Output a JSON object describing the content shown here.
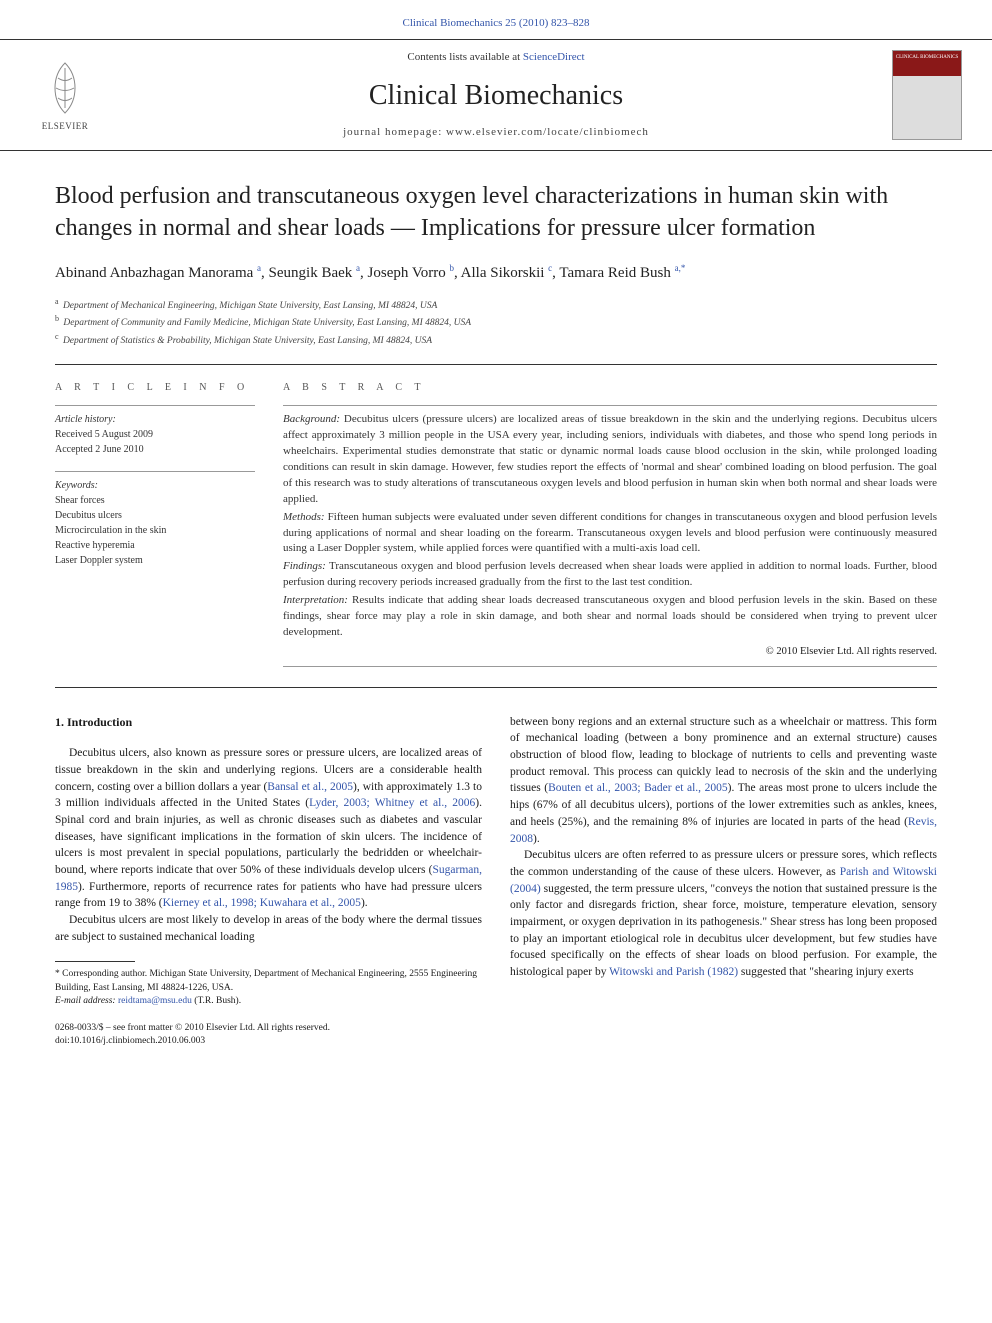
{
  "top_link": "Clinical Biomechanics 25 (2010) 823–828",
  "header": {
    "contents_prefix": "Contents lists available at ",
    "contents_link": "ScienceDirect",
    "journal": "Clinical Biomechanics",
    "homepage_prefix": "journal homepage: ",
    "homepage": "www.elsevier.com/locate/clinbiomech",
    "publisher_logo_text": "ELSEVIER",
    "cover_text": "CLINICAL BIOMECHANICS"
  },
  "title": "Blood perfusion and transcutaneous oxygen level characterizations in human skin with changes in normal and shear loads — Implications for pressure ulcer formation",
  "authors_html": "Abinand Anbazhagan Manorama <sup>a</sup>, Seungik Baek <sup>a</sup>, Joseph Vorro <sup>b</sup>, Alla Sikorskii <sup>c</sup>, Tamara Reid Bush <sup>a,*</sup>",
  "affiliations": [
    {
      "sup": "a",
      "text": "Department of Mechanical Engineering, Michigan State University, East Lansing, MI 48824, USA"
    },
    {
      "sup": "b",
      "text": "Department of Community and Family Medicine, Michigan State University, East Lansing, MI 48824, USA"
    },
    {
      "sup": "c",
      "text": "Department of Statistics & Probability, Michigan State University, East Lansing, MI 48824, USA"
    }
  ],
  "info": {
    "heading": "A R T I C L E   I N F O",
    "history_label": "Article history:",
    "received": "Received 5 August 2009",
    "accepted": "Accepted 2 June 2010",
    "keywords_label": "Keywords:",
    "keywords": [
      "Shear forces",
      "Decubitus ulcers",
      "Microcirculation in the skin",
      "Reactive hyperemia",
      "Laser Doppler system"
    ]
  },
  "abstract": {
    "heading": "A B S T R A C T",
    "paragraphs": [
      {
        "label": "Background:",
        "text": " Decubitus ulcers (pressure ulcers) are localized areas of tissue breakdown in the skin and the underlying regions. Decubitus ulcers affect approximately 3 million people in the USA every year, including seniors, individuals with diabetes, and those who spend long periods in wheelchairs. Experimental studies demonstrate that static or dynamic normal loads cause blood occlusion in the skin, while prolonged loading conditions can result in skin damage. However, few studies report the effects of 'normal and shear' combined loading on blood perfusion. The goal of this research was to study alterations of transcutaneous oxygen levels and blood perfusion in human skin when both normal and shear loads were applied."
      },
      {
        "label": "Methods:",
        "text": " Fifteen human subjects were evaluated under seven different conditions for changes in transcutaneous oxygen and blood perfusion levels during applications of normal and shear loading on the forearm. Transcutaneous oxygen levels and blood perfusion were continuously measured using a Laser Doppler system, while applied forces were quantified with a multi-axis load cell."
      },
      {
        "label": "Findings:",
        "text": " Transcutaneous oxygen and blood perfusion levels decreased when shear loads were applied in addition to normal loads. Further, blood perfusion during recovery periods increased gradually from the first to the last test condition."
      },
      {
        "label": "Interpretation:",
        "text": " Results indicate that adding shear loads decreased transcutaneous oxygen and blood perfusion levels in the skin. Based on these findings, shear force may play a role in skin damage, and both shear and normal loads should be considered when trying to prevent ulcer development."
      }
    ],
    "copyright": "© 2010 Elsevier Ltd. All rights reserved."
  },
  "body": {
    "intro_heading": "1. Introduction",
    "left_paras": [
      "Decubitus ulcers, also known as pressure sores or pressure ulcers, are localized areas of tissue breakdown in the skin and underlying regions. Ulcers are a considerable health concern, costing over a billion dollars a year (Bansal et al., 2005), with approximately 1.3 to 3 million individuals affected in the United States (Lyder, 2003; Whitney et al., 2006). Spinal cord and brain injuries, as well as chronic diseases such as diabetes and vascular diseases, have significant implications in the formation of skin ulcers. The incidence of ulcers is most prevalent in special populations, particularly the bedridden or wheelchair-bound, where reports indicate that over 50% of these individuals develop ulcers (Sugarman, 1985). Furthermore, reports of recurrence rates for patients who have had pressure ulcers range from 19 to 38% (Kierney et al., 1998; Kuwahara et al., 2005).",
      "Decubitus ulcers are most likely to develop in areas of the body where the dermal tissues are subject to sustained mechanical loading"
    ],
    "right_paras": [
      "between bony regions and an external structure such as a wheelchair or mattress. This form of mechanical loading (between a bony prominence and an external structure) causes obstruction of blood flow, leading to blockage of nutrients to cells and preventing waste product removal. This process can quickly lead to necrosis of the skin and the underlying tissues (Bouten et al., 2003; Bader et al., 2005). The areas most prone to ulcers include the hips (67% of all decubitus ulcers), portions of the lower extremities such as ankles, knees, and heels (25%), and the remaining 8% of injuries are located in parts of the head (Revis, 2008).",
      "Decubitus ulcers are often referred to as pressure ulcers or pressure sores, which reflects the common understanding of the cause of these ulcers. However, as Parish and Witowski (2004) suggested, the term pressure ulcers, \"conveys the notion that sustained pressure is the only factor and disregards friction, shear force, moisture, temperature elevation, sensory impairment, or oxygen deprivation in its pathogenesis.\" Shear stress has long been proposed to play an important etiological role in decubitus ulcer development, but few studies have focused specifically on the effects of shear loads on blood perfusion. For example, the histological paper by Witowski and Parish (1982) suggested that \"shearing injury exerts"
    ]
  },
  "footnote": {
    "corresp": "* Corresponding author. Michigan State University, Department of Mechanical Engineering, 2555 Engineering Building, East Lansing, MI 48824-1226, USA.",
    "email_label": "E-mail address: ",
    "email": "reidtama@msu.edu",
    "email_name": " (T.R. Bush)."
  },
  "bottom": {
    "issn": "0268-0033/$ – see front matter © 2010 Elsevier Ltd. All rights reserved.",
    "doi": "doi:10.1016/j.clinbiomech.2010.06.003"
  },
  "citation_links": [
    "Bansal et al., 2005",
    "Lyder, 2003; Whitney et al., 2006",
    "Sugarman, 1985",
    "Kierney et al., 1998; Kuwahara et al., 2005",
    "Bouten et al., 2003; Bader et al., 2005",
    "Revis, 2008",
    "Parish and Witowski (2004)",
    "Witowski and Parish (1982)"
  ]
}
